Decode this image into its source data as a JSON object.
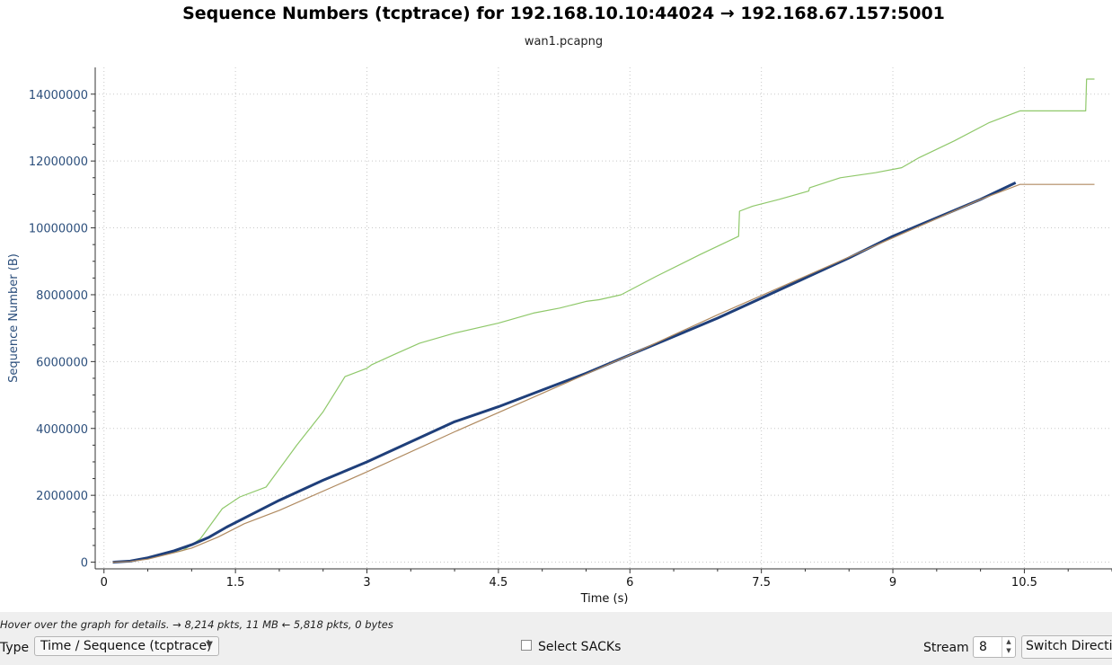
{
  "header": {
    "title": "Sequence Numbers (tcptrace) for 192.168.10.10:44024 → 192.168.67.157:5001",
    "subtitle": "wan1.pcapng"
  },
  "chart_data": {
    "type": "line",
    "xlabel": "Time (s)",
    "ylabel": "Sequence Number (B)",
    "xlim": [
      -0.1,
      11.5
    ],
    "ylim": [
      -200000,
      14800000
    ],
    "x_ticks": [
      0,
      1.5,
      3,
      4.5,
      6,
      7.5,
      9,
      10.5
    ],
    "y_ticks": [
      0,
      2000000,
      4000000,
      6000000,
      8000000,
      10000000,
      12000000,
      14000000
    ],
    "grid": true,
    "series": [
      {
        "color": "#8fc86a",
        "x": [
          0.1,
          0.3,
          0.5,
          0.7,
          0.9,
          1.0,
          1.1,
          1.35,
          1.55,
          1.85,
          2.2,
          2.5,
          2.75,
          3.0,
          3.05,
          3.3,
          3.6,
          4.0,
          4.5,
          4.9,
          5.2,
          5.5,
          5.65,
          5.9,
          6.3,
          6.8,
          7.24,
          7.25,
          7.4,
          7.7,
          8.04,
          8.05,
          8.4,
          8.8,
          9.1,
          9.3,
          9.7,
          10.1,
          10.45,
          10.8,
          11.2,
          11.21,
          11.3
        ],
        "y": [
          0,
          30000,
          100000,
          230000,
          350000,
          520000,
          700000,
          1600000,
          1950000,
          2250000,
          3500000,
          4500000,
          5550000,
          5800000,
          5900000,
          6200000,
          6550000,
          6850000,
          7150000,
          7450000,
          7600000,
          7800000,
          7850000,
          8000000,
          8550000,
          9200000,
          9750000,
          10500000,
          10650000,
          10850000,
          11100000,
          11200000,
          11500000,
          11650000,
          11800000,
          12100000,
          12600000,
          13150000,
          13500000,
          13500000,
          13500000,
          14450000,
          14450000
        ]
      },
      {
        "color": "#1f3f7a",
        "x": [
          0.1,
          0.3,
          0.5,
          0.8,
          1.0,
          1.2,
          1.4,
          1.7,
          2.0,
          2.5,
          3.0,
          3.5,
          4.0,
          4.5,
          5.0,
          5.5,
          6.0,
          6.5,
          7.0,
          7.5,
          8.0,
          8.5,
          9.0,
          9.5,
          10.0,
          10.4
        ],
        "y": [
          0,
          30000,
          130000,
          340000,
          520000,
          750000,
          1050000,
          1450000,
          1850000,
          2450000,
          3000000,
          3600000,
          4200000,
          4650000,
          5150000,
          5650000,
          6200000,
          6750000,
          7300000,
          7900000,
          8500000,
          9100000,
          9750000,
          10300000,
          10850000,
          11350000
        ]
      },
      {
        "color": "#b08a60",
        "x": [
          0.1,
          0.3,
          0.5,
          0.8,
          1.0,
          1.3,
          1.6,
          2.0,
          3.0,
          4.0,
          5.0,
          6.0,
          7.0,
          8.0,
          9.0,
          10.0,
          10.45,
          11.3
        ],
        "y": [
          0,
          20000,
          90000,
          280000,
          420000,
          750000,
          1150000,
          1550000,
          2700000,
          3900000,
          5050000,
          6200000,
          7400000,
          8550000,
          9700000,
          10850000,
          11300000,
          11300000
        ]
      }
    ]
  },
  "status": {
    "hint": "Hover over the graph for details. → 8,214 pkts, 11 MB ← 5,818 pkts, 0 bytes"
  },
  "controls": {
    "type_label": "Type",
    "type_value": "Time / Sequence (tcptrace)",
    "select_sacks_label": "Select SACKs",
    "select_sacks_checked": false,
    "stream_label": "Stream",
    "stream_value": "8",
    "switch_direction_label": "Switch Direction"
  }
}
